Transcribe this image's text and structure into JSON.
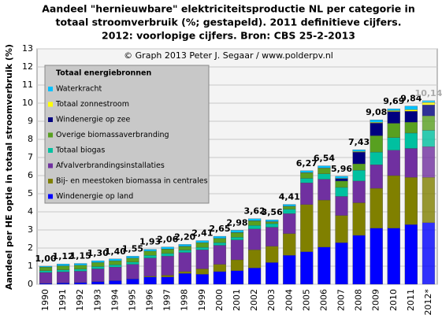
{
  "chart_data": {
    "type": "stacked_bar",
    "title": [
      "Aandeel \"hernieuwbare\" elektriciteitsproductie NL per categorie in",
      "totaal stroomverbruik (%; gestapeld). 2011 definitieve cijfers.",
      "2012: voorlopige cijfers. Bron: CBS 25-2-2013"
    ],
    "annotation": "© Graph 2013 Peter J. Segaar / www.polderpv.nl",
    "y_label": "Aandeel per HE optie in totaal stroomverbruik (%)",
    "legend_title": "Totaal energiebronnen",
    "legend": "upper left",
    "grid": true,
    "categories": [
      "1990",
      "1991",
      "1992",
      "1993",
      "1994",
      "1995",
      "1996",
      "1997",
      "1998",
      "1999",
      "2000",
      "2001",
      "2002",
      "2003",
      "2004",
      "2005",
      "2006",
      "2007",
      "2008",
      "2009",
      "2010",
      "2011",
      "2012*"
    ],
    "total_labels": [
      "1,00",
      "1,12",
      "1,15",
      "1,30",
      "1,40",
      "1,55",
      "1,93",
      "2,06",
      "2,20",
      "2,41",
      "2,65",
      "2,98",
      "3,62",
      "3,56",
      "4,41",
      "6,27",
      "6,54",
      "5,96",
      "7,43",
      "9,08",
      "9,69",
      "9,84",
      "10,14"
    ],
    "ylim": [
      0,
      13
    ],
    "yticks": [
      0,
      1,
      2,
      3,
      4,
      5,
      6,
      7,
      8,
      9,
      10,
      11,
      12,
      13
    ],
    "series": [
      {
        "name": "Windenergie op land",
        "color": "#0000ff",
        "values": [
          0.05,
          0.08,
          0.1,
          0.15,
          0.2,
          0.3,
          0.4,
          0.4,
          0.6,
          0.55,
          0.7,
          0.75,
          0.9,
          1.2,
          1.6,
          1.8,
          2.05,
          2.3,
          2.7,
          3.1,
          3.1,
          3.3,
          3.4
        ]
      },
      {
        "name": "Bij- en meestoken biomassa in centrales",
        "color": "#808000",
        "values": [
          0,
          0,
          0,
          0,
          0,
          0,
          0.05,
          0.1,
          0.1,
          0.3,
          0.4,
          0.6,
          1.0,
          0.9,
          1.2,
          2.6,
          2.6,
          1.5,
          1.8,
          2.2,
          2.9,
          2.6,
          2.5
        ]
      },
      {
        "name": "Afvalverbrandingsinstallaties",
        "color": "#7030a0",
        "values": [
          0.6,
          0.6,
          0.62,
          0.7,
          0.75,
          0.8,
          1.0,
          1.05,
          1.05,
          1.05,
          1.05,
          1.1,
          1.15,
          1.05,
          1.1,
          1.2,
          1.15,
          1.05,
          1.2,
          1.3,
          1.4,
          1.6,
          1.7
        ]
      },
      {
        "name": "Totaal biogas",
        "color": "#00c0a0",
        "values": [
          0.1,
          0.12,
          0.12,
          0.13,
          0.13,
          0.13,
          0.15,
          0.15,
          0.14,
          0.14,
          0.15,
          0.15,
          0.2,
          0.2,
          0.25,
          0.25,
          0.3,
          0.5,
          0.6,
          0.7,
          0.7,
          0.85,
          0.9
        ]
      },
      {
        "name": "Overige biomassaverbranding",
        "color": "#58a020",
        "values": [
          0.2,
          0.22,
          0.21,
          0.22,
          0.22,
          0.22,
          0.23,
          0.24,
          0.2,
          0.25,
          0.23,
          0.25,
          0.25,
          0.1,
          0.15,
          0.3,
          0.3,
          0.35,
          0.35,
          0.9,
          0.79,
          0.6,
          0.8
        ]
      },
      {
        "name": "Windenergie op zee",
        "color": "#000080",
        "values": [
          0,
          0,
          0,
          0,
          0,
          0,
          0,
          0,
          0,
          0,
          0,
          0,
          0,
          0,
          0,
          0,
          0,
          0.13,
          0.65,
          0.7,
          0.65,
          0.6,
          0.6
        ]
      },
      {
        "name": "Totaal zonnestroom",
        "color": "#ffff00",
        "values": [
          0,
          0,
          0,
          0,
          0,
          0,
          0,
          0.01,
          0.01,
          0.01,
          0.01,
          0.01,
          0.01,
          0.01,
          0.01,
          0.02,
          0.02,
          0.02,
          0.03,
          0.04,
          0.05,
          0.09,
          0.14
        ]
      },
      {
        "name": "Waterkracht",
        "color": "#00c0ff",
        "values": [
          0.05,
          0.1,
          0.1,
          0.1,
          0.1,
          0.1,
          0.1,
          0.11,
          0.1,
          0.11,
          0.11,
          0.12,
          0.11,
          0.1,
          0.1,
          0.1,
          0.12,
          0.11,
          0.1,
          0.14,
          0.1,
          0.2,
          0.1
        ]
      }
    ]
  }
}
